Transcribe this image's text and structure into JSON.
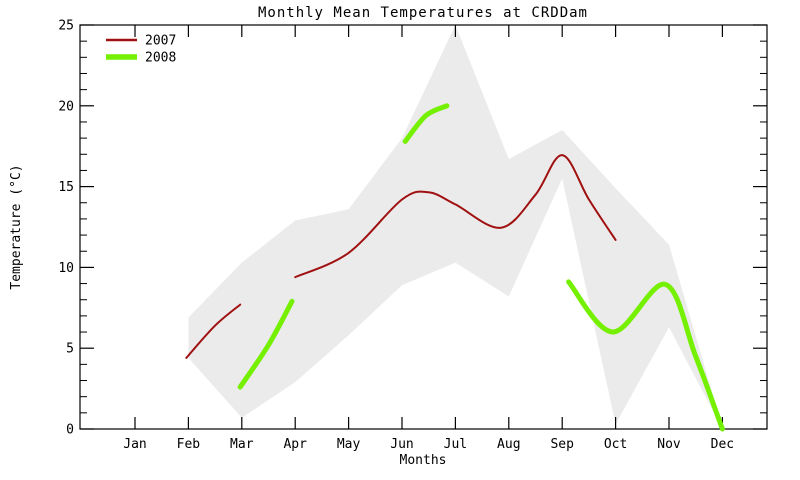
{
  "chart_data": {
    "type": "line",
    "title": "Monthly Mean Temperatures at CRDDam",
    "xlabel": "Months",
    "ylabel": "Temperature (°C)",
    "ylim": [
      0,
      25
    ],
    "y_major_ticks": [
      0,
      5,
      10,
      15,
      20,
      25
    ],
    "y_minor_step": 1,
    "months": [
      "Jan",
      "Feb",
      "Mar",
      "Apr",
      "May",
      "Jun",
      "Jul",
      "Aug",
      "Sep",
      "Oct",
      "Nov",
      "Dec"
    ],
    "grid": false,
    "legend_position": "top-left",
    "axis_color": "#000000",
    "background_color": "#ffffff",
    "series": [
      {
        "name": "2007",
        "color": "#a01010",
        "line_width": 2,
        "monthly_values": {
          "Feb": 4.5,
          "Mar": 7.7,
          "Apr": 9.4,
          "May": 10.9,
          "Jun": 14.2,
          "Jul": 13.9,
          "Aug": 12.6,
          "Sep": 17.0,
          "Oct": 11.7
        },
        "segments": [
          [
            [
              1.96,
              4.4
            ],
            [
              2.5,
              6.4
            ],
            [
              2.97,
              7.7
            ]
          ],
          [
            [
              4.0,
              9.4
            ],
            [
              5.0,
              10.9
            ],
            [
              6.0,
              14.2
            ],
            [
              6.5,
              14.65
            ],
            [
              7.0,
              13.9
            ],
            [
              7.85,
              12.45
            ],
            [
              8.5,
              14.5
            ],
            [
              9.0,
              16.95
            ],
            [
              9.5,
              14.2
            ],
            [
              10.0,
              11.7
            ]
          ]
        ]
      },
      {
        "name": "2008",
        "color": "#74f000",
        "line_width": 5,
        "monthly_values": {
          "Mar": 2.6,
          "Apr": 7.9,
          "Jun": 17.8,
          "Jul": 20.0,
          "Sep": 9.1,
          "Oct": 6.0,
          "Nov": 9.0,
          "Dec": 0.0
        },
        "segments": [
          [
            [
              2.97,
              2.6
            ],
            [
              3.5,
              5.2
            ],
            [
              3.94,
              7.9
            ]
          ],
          [
            [
              6.06,
              17.8
            ],
            [
              6.45,
              19.4
            ],
            [
              6.84,
              20.0
            ]
          ],
          [
            [
              9.12,
              9.1
            ],
            [
              9.95,
              6.0
            ],
            [
              10.93,
              8.95
            ],
            [
              11.5,
              4.5
            ],
            [
              12.0,
              0.0
            ]
          ]
        ]
      }
    ],
    "envelope": {
      "color": "#ebebeb",
      "points": [
        {
          "month": 2,
          "low": 4.4,
          "high": 6.9
        },
        {
          "month": 3,
          "low": 0.7,
          "high": 10.3
        },
        {
          "month": 4,
          "low": 2.9,
          "high": 12.9
        },
        {
          "month": 5,
          "low": 5.8,
          "high": 13.6
        },
        {
          "month": 6,
          "low": 8.9,
          "high": 18.0
        },
        {
          "month": 7,
          "low": 10.3,
          "high": 25.0
        },
        {
          "month": 8,
          "low": 8.2,
          "high": 16.7
        },
        {
          "month": 9,
          "low": 15.5,
          "high": 18.5
        },
        {
          "month": 10,
          "low": 0.3,
          "high": 14.9
        },
        {
          "month": 11,
          "low": 6.3,
          "high": 11.4
        },
        {
          "month": 12,
          "low": 0.0,
          "high": 0.1
        }
      ]
    }
  }
}
